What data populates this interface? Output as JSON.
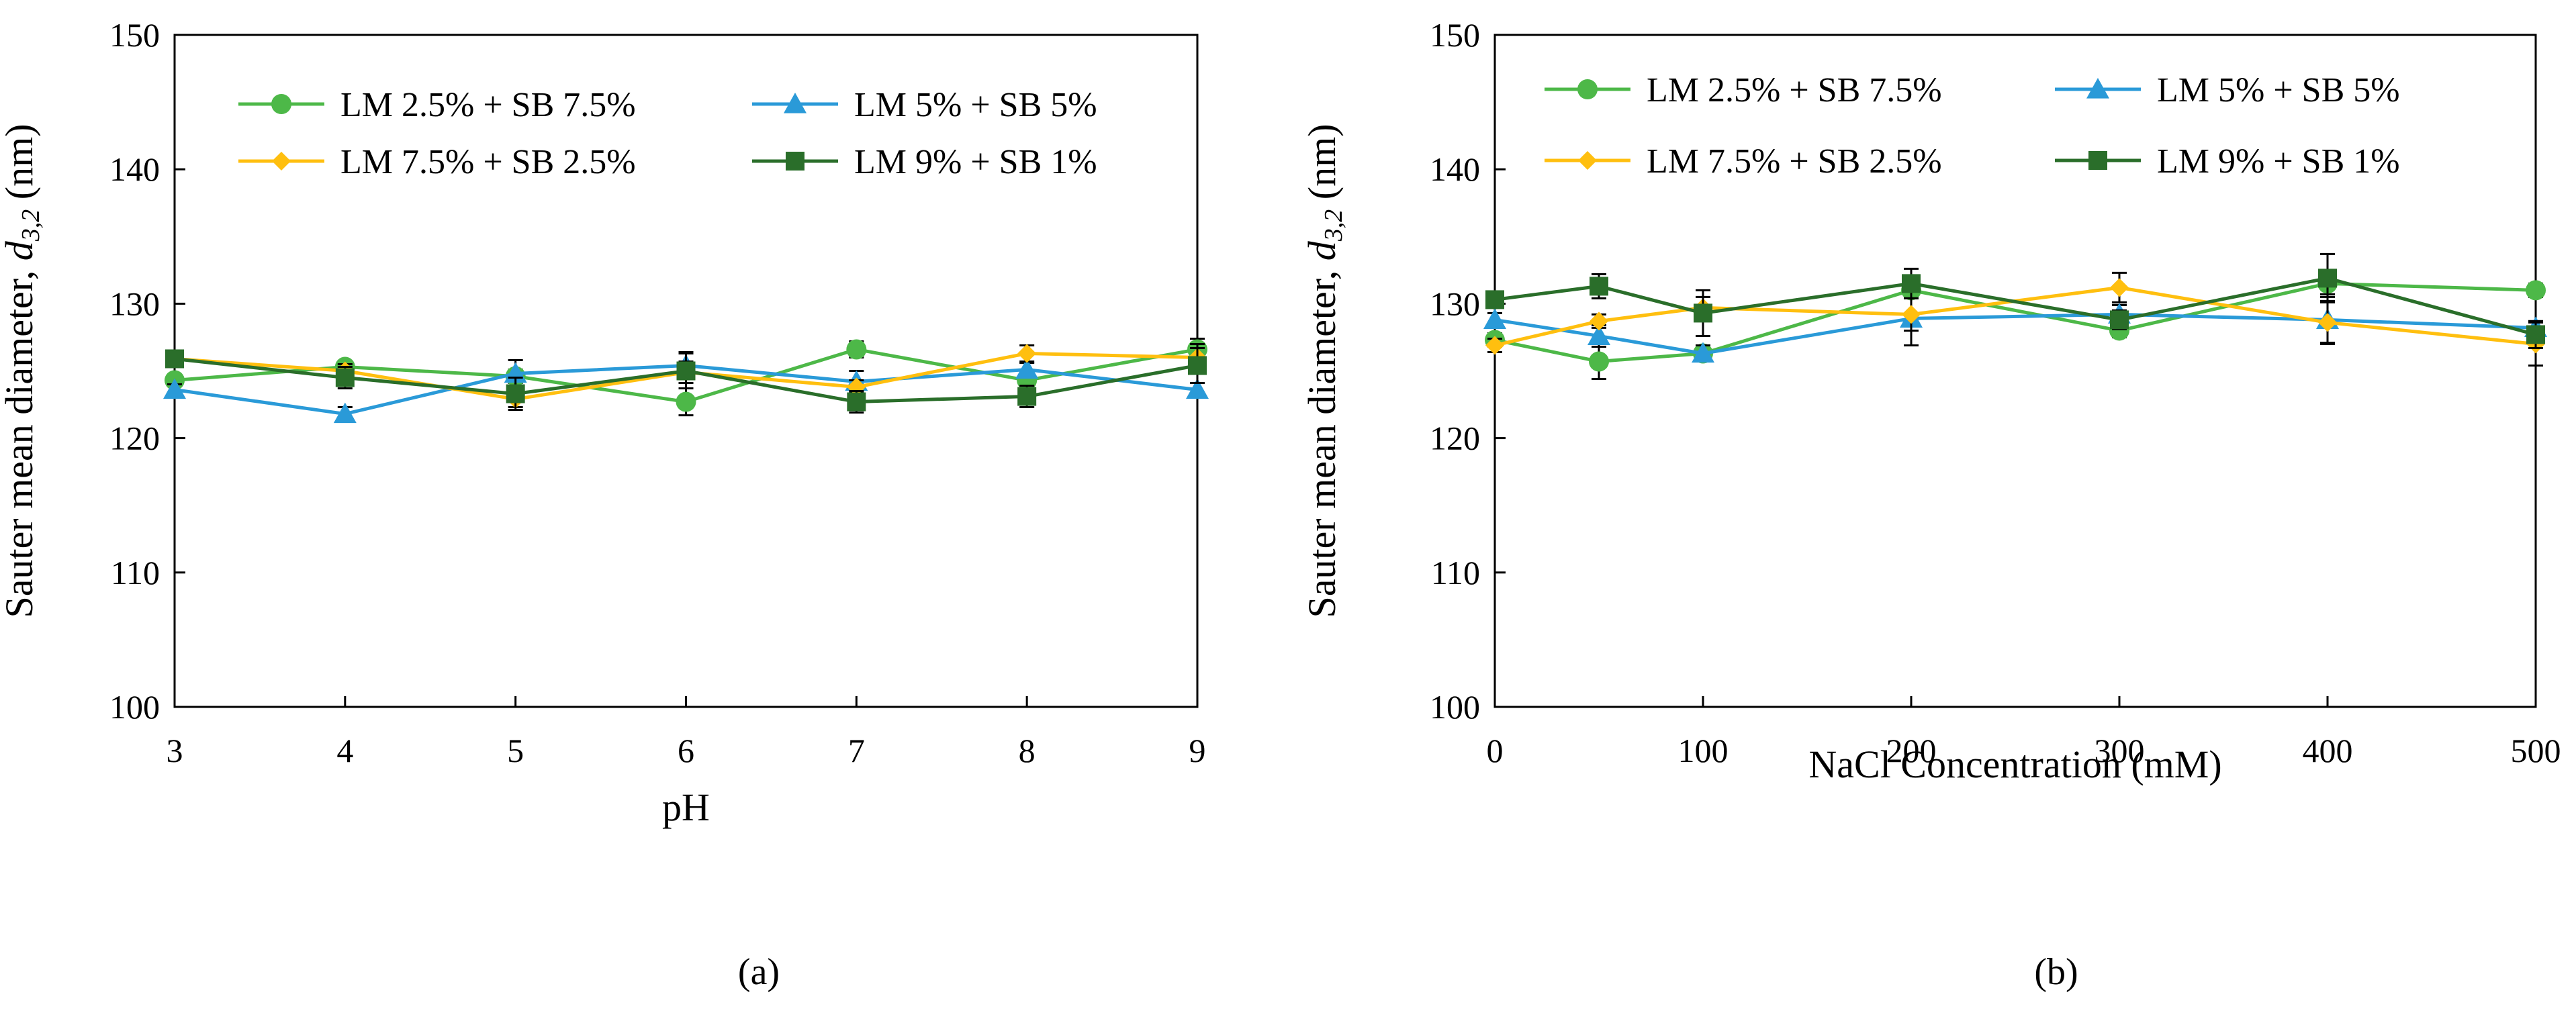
{
  "figure": {
    "panel_labels": [
      "(a)",
      "(b)"
    ]
  },
  "chart_data": [
    {
      "type": "line",
      "panel": "(a)",
      "title": "",
      "xlabel": "pH",
      "ylabel": "Sauter mean diameter, d3,2 (nm)",
      "ylabel_parts": {
        "prefix": "Sauter mean diameter, ",
        "italic": "d",
        "subscript": "3,2",
        "suffix": " (nm)"
      },
      "xlim": [
        3,
        9
      ],
      "ylim": [
        100,
        150
      ],
      "xticks": [
        3,
        4,
        5,
        6,
        7,
        8,
        9
      ],
      "yticks": [
        100,
        110,
        120,
        130,
        140,
        150
      ],
      "grid": false,
      "legend_position": "top-left",
      "x": [
        3,
        4,
        5,
        6,
        7,
        8,
        9
      ],
      "series": [
        {
          "name": "LM 2.5% + SB 7.5%",
          "color": "#4db848",
          "marker": "circle",
          "values": [
            124.3,
            125.3,
            124.6,
            122.7,
            126.6,
            124.3,
            126.6
          ],
          "errors": [
            0.4,
            0.4,
            0.5,
            1.0,
            0.6,
            0.5,
            0.8
          ]
        },
        {
          "name": "LM 5% + SB 5%",
          "color": "#2a9ad8",
          "marker": "triangle",
          "values": [
            123.6,
            121.8,
            124.8,
            125.4,
            124.2,
            125.1,
            123.6
          ],
          "errors": [
            0.4,
            0.5,
            1.0,
            1.0,
            0.8,
            0.5,
            0.5
          ]
        },
        {
          "name": "LM 7.5% + SB 2.5%",
          "color": "#ffbf0f",
          "marker": "diamond",
          "values": [
            125.9,
            125.0,
            122.9,
            124.9,
            123.8,
            126.3,
            126.0
          ],
          "errors": [
            0.6,
            0.5,
            0.6,
            0.8,
            0.5,
            0.6,
            1.0
          ]
        },
        {
          "name": "LM 9% + SB 1%",
          "color": "#2a6e2a",
          "marker": "square",
          "values": [
            125.9,
            124.5,
            123.3,
            125.0,
            122.7,
            123.1,
            125.4
          ],
          "errors": [
            0.5,
            0.8,
            1.2,
            1.3,
            0.8,
            0.8,
            1.3
          ]
        }
      ]
    },
    {
      "type": "line",
      "panel": "(b)",
      "title": "",
      "xlabel": "NaCl Concentration (mM)",
      "ylabel": "Sauter mean diameter, d3,2 (nm)",
      "ylabel_parts": {
        "prefix": "Sauter mean diameter, ",
        "italic": "d",
        "subscript": "3,2",
        "suffix": " (nm)"
      },
      "xlim": [
        0,
        500
      ],
      "ylim": [
        100,
        150
      ],
      "xticks": [
        0,
        100,
        200,
        300,
        400,
        500
      ],
      "yticks": [
        100,
        110,
        120,
        130,
        140,
        150
      ],
      "grid": false,
      "legend_position": "top",
      "x": [
        0,
        50,
        100,
        200,
        300,
        400,
        500
      ],
      "series": [
        {
          "name": "LM 2.5% + SB 7.5%",
          "color": "#4db848",
          "marker": "circle",
          "values": [
            127.3,
            125.7,
            126.3,
            131.0,
            128.0,
            131.5,
            131.0
          ],
          "errors": [
            0.5,
            1.3,
            0.6,
            0.6,
            0.5,
            0.8,
            0.5
          ]
        },
        {
          "name": "LM 5% + SB 5%",
          "color": "#2a9ad8",
          "marker": "triangle",
          "values": [
            128.8,
            127.6,
            126.3,
            128.9,
            129.2,
            128.8,
            128.2
          ],
          "errors": [
            0.5,
            0.8,
            0.6,
            2.0,
            0.7,
            1.7,
            0.5
          ]
        },
        {
          "name": "LM 7.5% + SB 2.5%",
          "color": "#ffbf0f",
          "marker": "diamond",
          "values": [
            126.9,
            128.7,
            129.7,
            129.2,
            131.2,
            128.6,
            127.0
          ],
          "errors": [
            0.5,
            0.5,
            0.8,
            1.2,
            1.1,
            1.6,
            1.6
          ]
        },
        {
          "name": "LM 9% + SB 1%",
          "color": "#2a6e2a",
          "marker": "square",
          "values": [
            130.3,
            131.3,
            129.3,
            131.5,
            128.8,
            131.9,
            127.7
          ],
          "errors": [
            0.6,
            0.9,
            1.7,
            1.1,
            0.7,
            1.8,
            1.0
          ]
        }
      ]
    }
  ]
}
